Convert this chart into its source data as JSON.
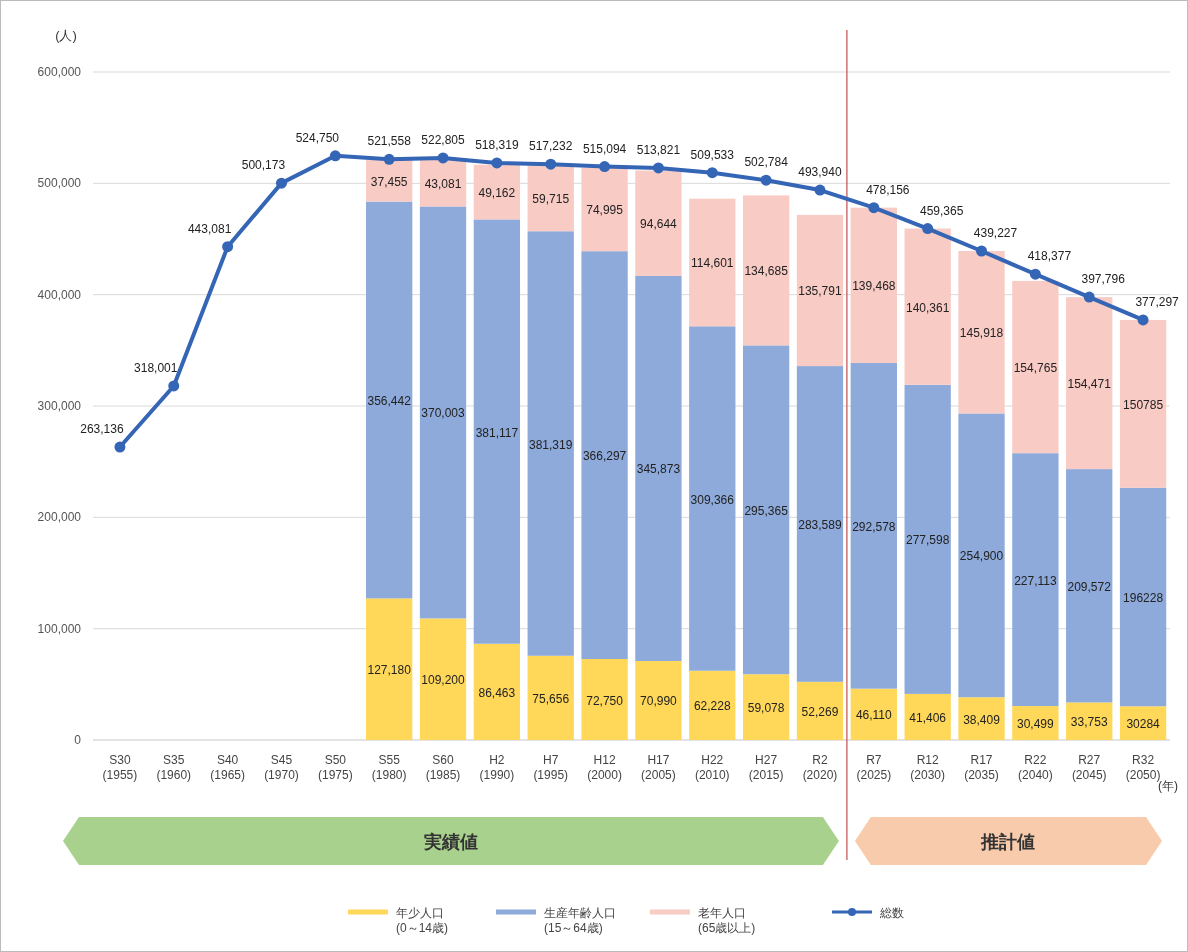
{
  "chart_data": {
    "type": "bar",
    "stacked": true,
    "ylabel": "(人)",
    "xlabel": "(年)",
    "categories": [
      "S30\n(1955)",
      "S35\n(1960)",
      "S40\n(1965)",
      "S45\n(1970)",
      "S50\n(1975)",
      "S55\n(1980)",
      "S60\n(1985)",
      "H2\n(1990)",
      "H7\n(1995)",
      "H12\n(2000)",
      "H17\n(2005)",
      "H22\n(2010)",
      "H27\n(2015)",
      "R2\n(2020)",
      "R7\n(2025)",
      "R12\n(2030)",
      "R17\n(2035)",
      "R22\n(2040)",
      "R27\n(2045)",
      "R32\n(2050)"
    ],
    "series": [
      {
        "name": "年少人口\n(0～14歳)",
        "color": "#ffd85a",
        "values": [
          null,
          null,
          null,
          null,
          null,
          127180,
          109200,
          86463,
          75656,
          72750,
          70990,
          62228,
          59078,
          52269,
          46110,
          41406,
          38409,
          30499,
          33753,
          30284
        ],
        "value_labels": [
          null,
          null,
          null,
          null,
          null,
          "127,180",
          "109,200",
          "86,463",
          "75,656",
          "72,750",
          "70,990",
          "62,228",
          "59,078",
          "52,269",
          "46,110",
          "41,406",
          "38,409",
          "30,499",
          "33,753",
          "30284"
        ]
      },
      {
        "name": "生産年齢人口\n(15～64歳)",
        "color": "#8eaadb",
        "values": [
          null,
          null,
          null,
          null,
          null,
          356442,
          370003,
          381117,
          381319,
          366297,
          345873,
          309366,
          295365,
          283589,
          292578,
          277598,
          254900,
          227113,
          209572,
          196228
        ],
        "value_labels": [
          null,
          null,
          null,
          null,
          null,
          "356,442",
          "370,003",
          "381,117",
          "381,319",
          "366,297",
          "345,873",
          "309,366",
          "295,365",
          "283,589",
          "292,578",
          "277,598",
          "254,900",
          "227,113",
          "209,572",
          "196228"
        ]
      },
      {
        "name": "老年人口\n(65歳以上)",
        "color": "#f8cbc4",
        "values": [
          null,
          null,
          null,
          null,
          null,
          37455,
          43081,
          49162,
          59715,
          74995,
          94644,
          114601,
          134685,
          135791,
          139468,
          140361,
          145918,
          154765,
          154471,
          150785
        ],
        "value_labels": [
          null,
          null,
          null,
          null,
          null,
          "37,455",
          "43,081",
          "49,162",
          "59,715",
          "74,995",
          "94,644",
          "114,601",
          "134,685",
          "135,791",
          "139,468",
          "140,361",
          "145,918",
          "154,765",
          "154,471",
          "150785"
        ]
      },
      {
        "name": "総数",
        "type": "line",
        "color": "#3565b5",
        "marker": "circle",
        "values": [
          263136,
          318001,
          443081,
          500173,
          524750,
          521558,
          522805,
          518319,
          517232,
          515094,
          513821,
          509533,
          502784,
          493940,
          478156,
          459365,
          439227,
          418377,
          397796,
          377297
        ],
        "value_labels": [
          "263,136",
          "318,001",
          "443,081",
          "500,173",
          "524,750",
          "521,558",
          "522,805",
          "518,319",
          "517,232",
          "515,094",
          "513,821",
          "509,533",
          "502,784",
          "493,940",
          "478,156",
          "459,365",
          "439,227",
          "418,377",
          "397,796",
          "377,297"
        ]
      }
    ],
    "ylim": [
      0,
      600000
    ],
    "yticks": [
      0,
      {
        "value": 100000,
        "label": "100,000"
      },
      {
        "value": 200000,
        "label": "200,000"
      },
      {
        "value": 300000,
        "label": "300,000"
      },
      {
        "value": 400000,
        "label": "400,000"
      },
      {
        "value": 500000,
        "label": "500,000"
      },
      {
        "value": 600000,
        "label": "600,000"
      }
    ],
    "grid": "y",
    "legend": "bottom",
    "ref_lines": [
      {
        "axis": "x",
        "value": "R7\n(2025)",
        "color": "#c0504d"
      }
    ],
    "annotations": [
      "実績値",
      "推計値"
    ]
  }
}
